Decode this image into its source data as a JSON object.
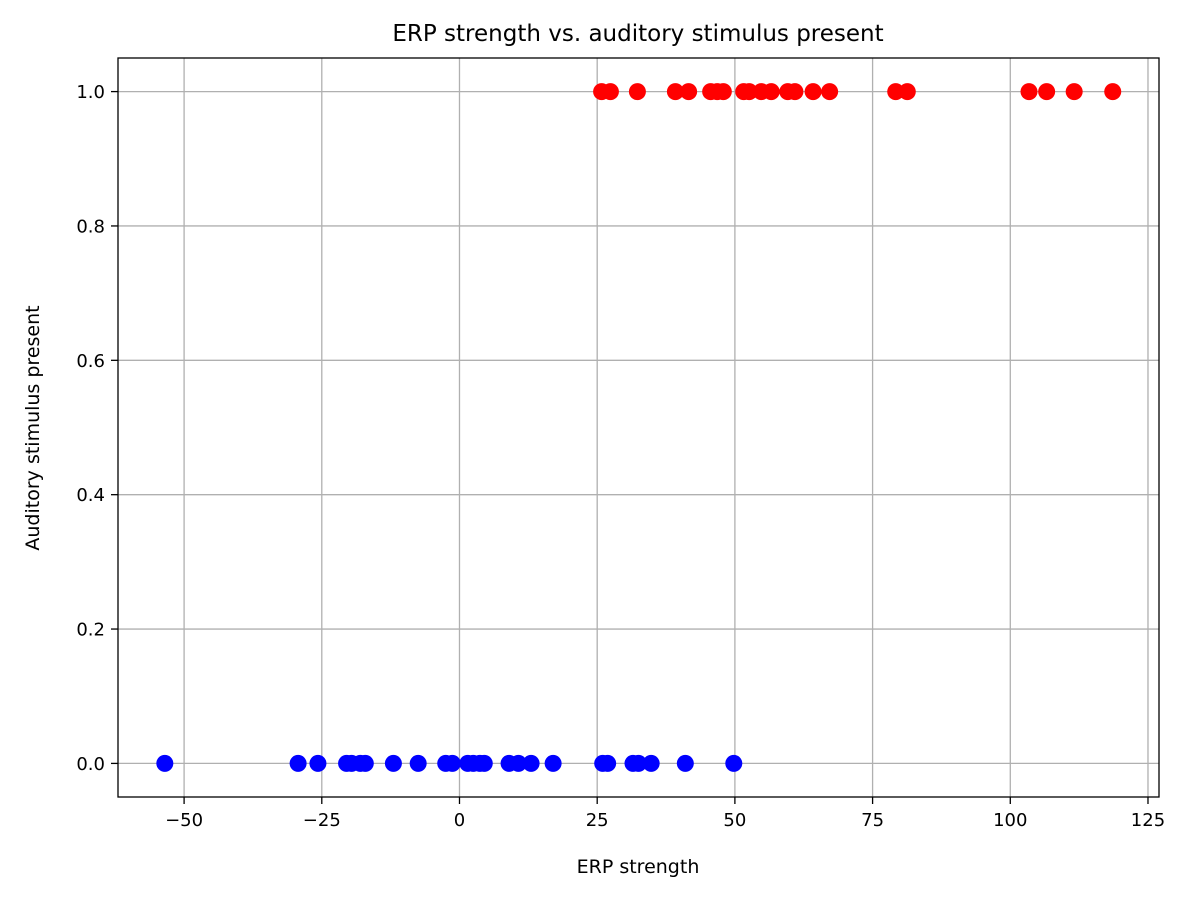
{
  "chart_data": {
    "type": "scatter",
    "title": "ERP strength vs. auditory stimulus present",
    "xlabel": "ERP strength",
    "ylabel": "Auditory stimulus present",
    "xlim": [
      -62,
      127
    ],
    "ylim": [
      -0.05,
      1.05
    ],
    "x_ticks": [
      -50,
      -25,
      0,
      25,
      50,
      75,
      100,
      125
    ],
    "x_tick_labels": [
      "−50",
      "−25",
      "0",
      "25",
      "50",
      "75",
      "100",
      "125"
    ],
    "y_ticks": [
      0.0,
      0.2,
      0.4,
      0.6,
      0.8,
      1.0
    ],
    "y_tick_labels": [
      "0.0",
      "0.2",
      "0.4",
      "0.6",
      "0.8",
      "1.0"
    ],
    "grid": true,
    "series": [
      {
        "color": "#0000ff",
        "x": [
          -53.5,
          -29.3,
          -25.7,
          -20.5,
          -19.6,
          -18.0,
          -17.1,
          -12.0,
          -7.5,
          -2.5,
          -1.3,
          1.5,
          2.5,
          3.7,
          4.5,
          9.0,
          10.7,
          13.0,
          17.0,
          26.0,
          26.9,
          31.5,
          32.5,
          34.8,
          41.0,
          49.8
        ],
        "y": [
          0,
          0,
          0,
          0,
          0,
          0,
          0,
          0,
          0,
          0,
          0,
          0,
          0,
          0,
          0,
          0,
          0,
          0,
          0,
          0,
          0,
          0,
          0,
          0,
          0,
          0
        ]
      },
      {
        "color": "#ff0000",
        "x": [
          25.8,
          27.4,
          32.3,
          39.2,
          41.6,
          45.6,
          46.8,
          47.9,
          51.6,
          52.6,
          54.8,
          56.6,
          59.6,
          60.9,
          64.2,
          67.2,
          79.2,
          81.3,
          103.4,
          106.6,
          111.6,
          118.6
        ],
        "y": [
          1,
          1,
          1,
          1,
          1,
          1,
          1,
          1,
          1,
          1,
          1,
          1,
          1,
          1,
          1,
          1,
          1,
          1,
          1,
          1,
          1,
          1
        ]
      }
    ]
  }
}
